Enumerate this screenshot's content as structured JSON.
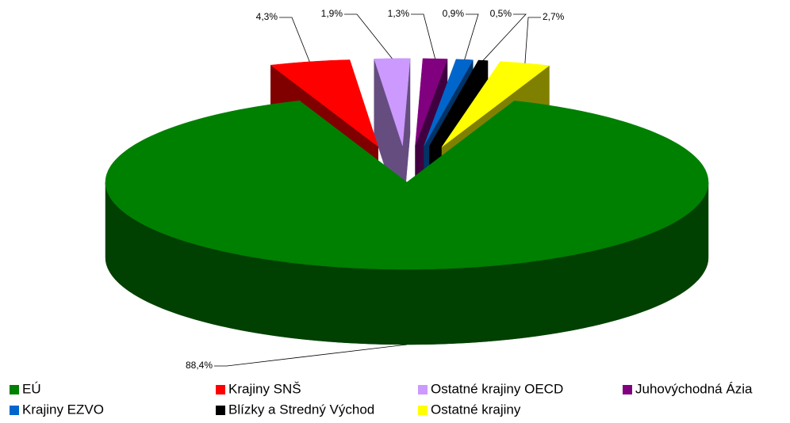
{
  "chart_data": {
    "type": "pie3d",
    "categories": [
      "EÚ",
      "Krajiny SNŠ",
      "Ostatné krajiny OECD",
      "Juhovýchodná Ázia",
      "Krajiny EZVO",
      "Blízky a Stredný Východ",
      "Ostatné krajiny"
    ],
    "values": [
      88.4,
      4.3,
      1.9,
      1.3,
      0.9,
      0.5,
      2.7
    ],
    "value_labels": [
      "88,4%",
      "4,3%",
      "1,9%",
      "1,3%",
      "0,9%",
      "0,5%",
      "2,7%"
    ],
    "colors": [
      "#008000",
      "#ff0000",
      "#cc99ff",
      "#800080",
      "#0066cc",
      "#000000",
      "#ffff00"
    ],
    "legend": "bottom"
  }
}
